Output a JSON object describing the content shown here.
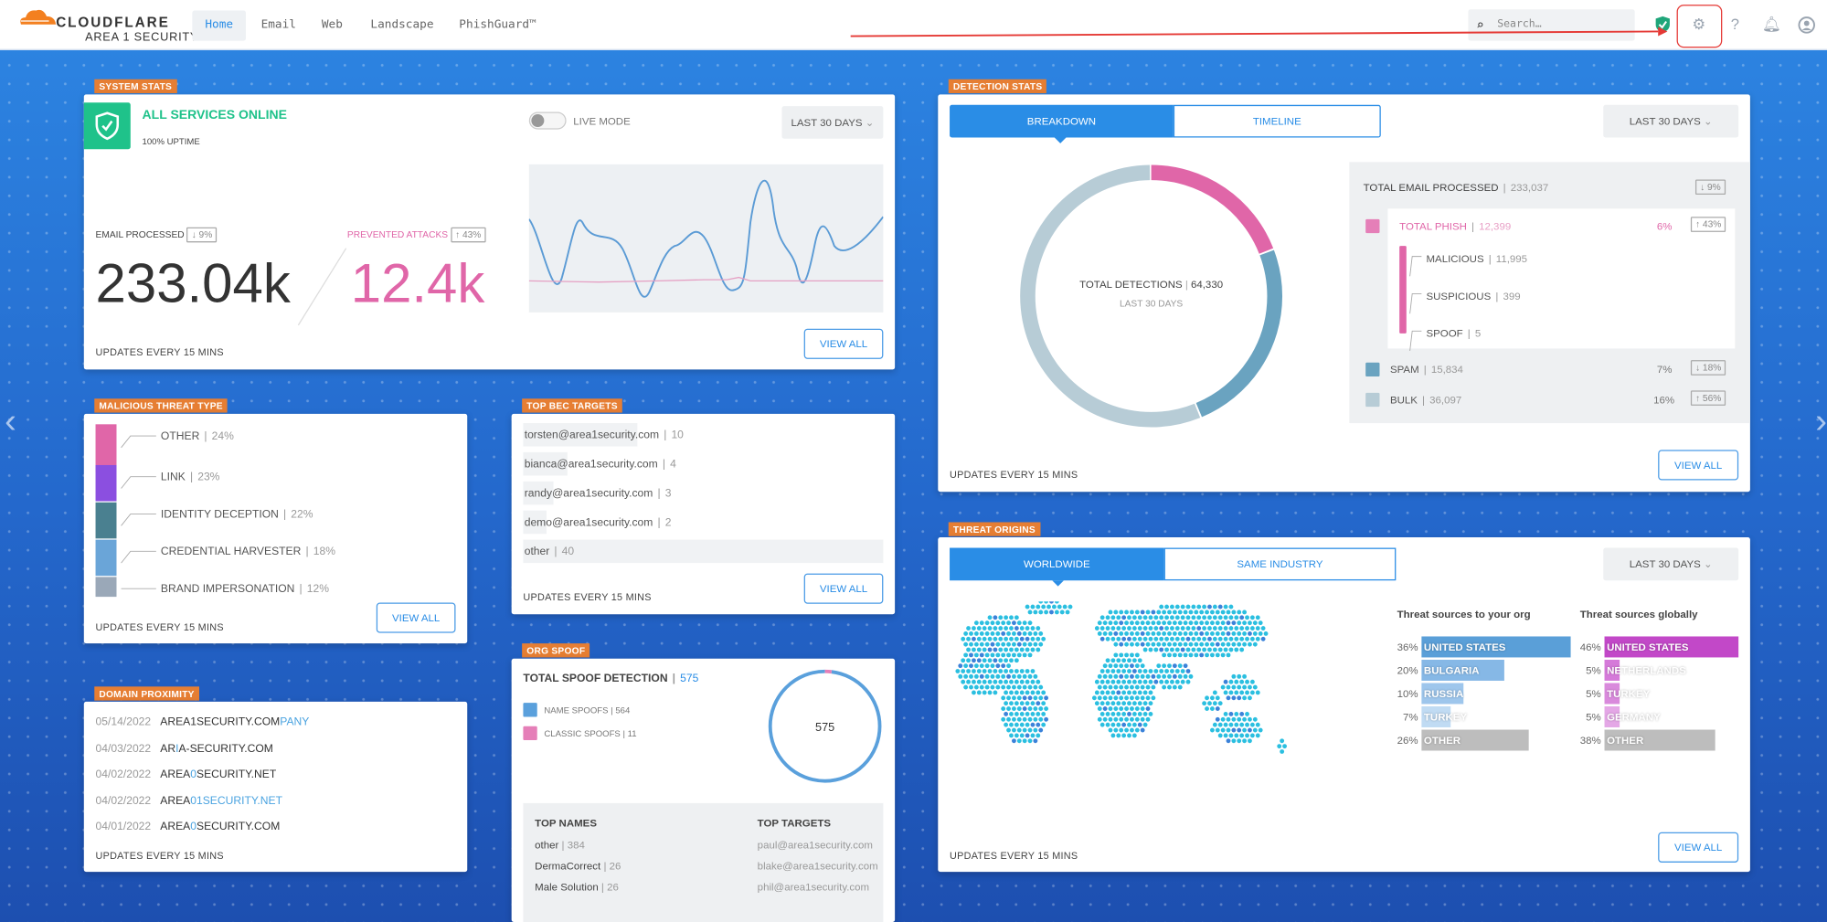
{
  "header": {
    "brand": "CLOUDFLARE",
    "subbrand": "AREA 1 SECURITY",
    "nav": [
      "Home",
      "Email",
      "Web",
      "Landscape",
      "PhishGuard™"
    ],
    "active_nav": "Home",
    "search_placeholder": "Search…",
    "icons": [
      "shield-check-icon",
      "gear-icon",
      "help-icon",
      "bell-icon",
      "user-icon"
    ]
  },
  "colors": {
    "accent": "#2a8de6",
    "tag": "#e67e33",
    "green": "#1fc28a",
    "pink": "#e066a8",
    "highlight": "#e53935"
  },
  "system_stats": {
    "tag": "SYSTEM STATS",
    "status": "ALL SERVICES ONLINE",
    "uptime": "100% UPTIME",
    "live_mode": "LIVE MODE",
    "live_mode_on": false,
    "range": "LAST 30 DAYS",
    "email_label": "EMAIL PROCESSED",
    "email_delta": "↓ 9%",
    "email_value": "233.04k",
    "prevented_label": "PREVENTED ATTACKS",
    "prevented_delta": "↑ 43%",
    "prevented_value": "12.4k",
    "updates": "UPDATES EVERY 15 MINS",
    "view_all": "VIEW ALL"
  },
  "malicious": {
    "tag": "MALICIOUS THREAT TYPE",
    "items": [
      {
        "label": "OTHER",
        "pct": "24%",
        "color": "#e066a8"
      },
      {
        "label": "LINK",
        "pct": "23%",
        "color": "#8b4fe0"
      },
      {
        "label": "IDENTITY DECEPTION",
        "pct": "22%",
        "color": "#4a8090"
      },
      {
        "label": "CREDENTIAL HARVESTER",
        "pct": "18%",
        "color": "#6aa5d8"
      },
      {
        "label": "BRAND IMPERSONATION",
        "pct": "12%",
        "color": "#9aa8b8"
      }
    ],
    "updates": "UPDATES EVERY 15 MINS",
    "view_all": "VIEW ALL"
  },
  "bec": {
    "tag": "TOP BEC TARGETS",
    "items": [
      {
        "email": "torsten@area1security.com",
        "count": "10"
      },
      {
        "email": "bianca@area1security.com",
        "count": "4"
      },
      {
        "email": "randy@area1security.com",
        "count": "3"
      },
      {
        "email": "demo@area1security.com",
        "count": "2"
      },
      {
        "email": "other",
        "count": "40"
      }
    ],
    "updates": "UPDATES EVERY 15 MINS",
    "view_all": "VIEW ALL"
  },
  "domain": {
    "tag": "DOMAIN PROXIMITY",
    "items": [
      {
        "date": "05/14/2022",
        "a": "AREA1SECURITY.COM",
        "b": "PANY",
        "c": ""
      },
      {
        "date": "04/03/2022",
        "a": "AR",
        "b": "I",
        "c": "A-SECURITY.COM"
      },
      {
        "date": "04/02/2022",
        "a": "AREA",
        "b": "0",
        "c": "SECURITY.NET"
      },
      {
        "date": "04/02/2022",
        "a": "AREA",
        "b": "01SECURITY.NET",
        "c": ""
      },
      {
        "date": "04/01/2022",
        "a": "AREA",
        "b": "0",
        "c": "SECURITY.COM"
      }
    ],
    "updates": "UPDATES EVERY 15 MINS"
  },
  "org_spoof": {
    "tag": "ORG SPOOF",
    "title": "TOTAL SPOOF DETECTION",
    "total": "575",
    "legend": [
      {
        "label": "NAME SPOOFS",
        "value": "564",
        "color": "#5aa0dc"
      },
      {
        "label": "CLASSIC SPOOFS",
        "value": "11",
        "color": "#e57fb8"
      }
    ],
    "top_names_label": "TOP NAMES",
    "top_names": [
      {
        "name": "other",
        "count": "384"
      },
      {
        "name": "DermaCorrect",
        "count": "26"
      },
      {
        "name": "Male Solution",
        "count": "26"
      }
    ],
    "top_targets_label": "TOP TARGETS",
    "top_targets": [
      "paul@area1security.com",
      "blake@area1security.com",
      "phil@area1security.com"
    ]
  },
  "detection": {
    "tag": "DETECTION STATS",
    "tabs": [
      "BREAKDOWN",
      "TIMELINE"
    ],
    "active_tab": "BREAKDOWN",
    "range": "LAST 30 DAYS",
    "center_label": "TOTAL DETECTIONS",
    "center_value": "64,330",
    "center_sub": "LAST 30 DAYS",
    "total_label": "TOTAL EMAIL PROCESSED",
    "total_value": "233,037",
    "total_delta": "↓ 9%",
    "phish": {
      "label": "TOTAL PHISH",
      "value": "12,399",
      "pct": "6%",
      "delta": "↑ 43%",
      "color": "#e066a8",
      "sub": [
        {
          "label": "MALICIOUS",
          "value": "11,995"
        },
        {
          "label": "SUSPICIOUS",
          "value": "399"
        },
        {
          "label": "SPOOF",
          "value": "5"
        }
      ]
    },
    "spam": {
      "label": "SPAM",
      "value": "15,834",
      "pct": "7%",
      "delta": "↓ 18%",
      "color": "#6aa3c0"
    },
    "bulk": {
      "label": "BULK",
      "value": "36,097",
      "pct": "16%",
      "delta": "↑ 56%",
      "color": "#b7ccd6"
    },
    "updates": "UPDATES EVERY 15 MINS",
    "view_all": "VIEW ALL"
  },
  "threat_origins": {
    "tag": "THREAT ORIGINS",
    "tabs": [
      "WORLDWIDE",
      "SAME INDUSTRY"
    ],
    "active_tab": "WORLDWIDE",
    "range": "LAST 30 DAYS",
    "org_title": "Threat sources to your org",
    "org": [
      {
        "pct": "36%",
        "label": "UNITED STATES",
        "value": 36
      },
      {
        "pct": "20%",
        "label": "BULGARIA",
        "value": 20
      },
      {
        "pct": "10%",
        "label": "RUSSIA",
        "value": 10
      },
      {
        "pct": "7%",
        "label": "TURKEY",
        "value": 7
      },
      {
        "pct": "26%",
        "label": "OTHER",
        "value": 26
      }
    ],
    "global_title": "Threat sources globally",
    "global": [
      {
        "pct": "46%",
        "label": "UNITED STATES",
        "value": 46
      },
      {
        "pct": "5%",
        "label": "NETHERLANDS",
        "value": 5
      },
      {
        "pct": "5%",
        "label": "TURKEY",
        "value": 5
      },
      {
        "pct": "5%",
        "label": "GERMANY",
        "value": 5
      },
      {
        "pct": "38%",
        "label": "OTHER",
        "value": 38
      }
    ],
    "updates": "UPDATES EVERY 15 MINS",
    "view_all": "VIEW ALL"
  }
}
